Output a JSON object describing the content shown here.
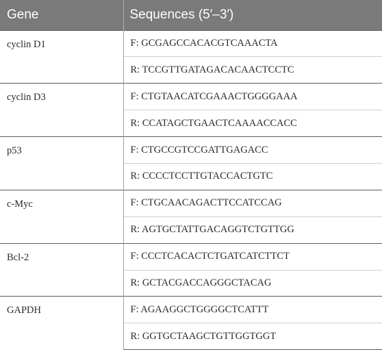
{
  "table": {
    "headers": [
      "Gene",
      "Sequences (5′–3′)"
    ],
    "rows": [
      {
        "gene": "cyclin D1",
        "forward": "F: GCGAGCCACACGTCAAACTA",
        "reverse": "R: TCCGTTGATAGACACAACTCCTC"
      },
      {
        "gene": "cyclin D3",
        "forward": "F: CTGTAACATCGAAACTGGGGAAA",
        "reverse": "R: CCATAGCTGAACTCAAAACCACC"
      },
      {
        "gene": "p53",
        "forward": "F: CTGCCGTCCGATTGAGACC",
        "reverse": "R: CCCCTCCTTGTACCACTGTC"
      },
      {
        "gene": "c-Myc",
        "forward": "F: CTGCAACAGACTTCCATCCAG",
        "reverse": "R: AGTGCTATTGACAGGTCTGTTGG"
      },
      {
        "gene": "Bcl-2",
        "forward": "F: CCCTCACACTCTGATCATCTTCT",
        "reverse": "R: GCTACGACCAGGGCTACAG"
      },
      {
        "gene": "GAPDH",
        "forward": "F: AGAAGGCTGGGGCTCATTT",
        "reverse": "R: GGTGCTAAGCTGTTGGTGGT"
      }
    ]
  }
}
